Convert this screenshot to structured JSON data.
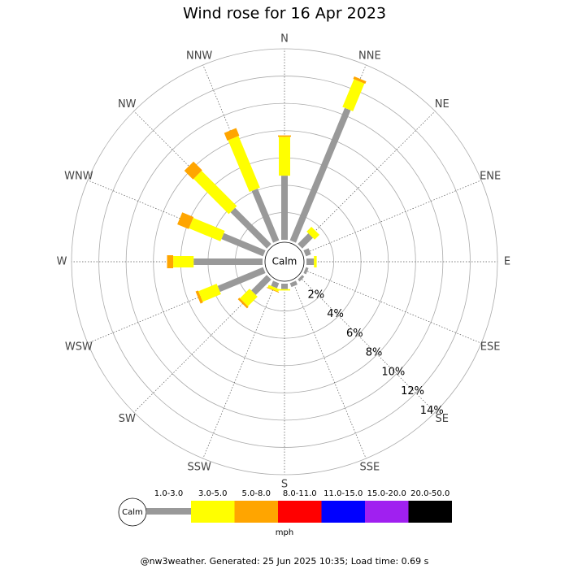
{
  "chart_data": {
    "type": "rose",
    "title": "Wind rose for 16 Apr 2023",
    "categories": [
      "N",
      "NNE",
      "NE",
      "ENE",
      "E",
      "ESE",
      "SE",
      "SSE",
      "S",
      "SSW",
      "SW",
      "WSW",
      "W",
      "WNW",
      "NW",
      "NNW"
    ],
    "center_label": "Calm",
    "series": [
      {
        "name": "1.0-3.0",
        "color": "#999999",
        "values": [
          4.7,
          10.5,
          1.1,
          0.4,
          0.55,
          0.2,
          0.2,
          0.3,
          0.4,
          0.4,
          1.6,
          3.6,
          5.05,
          3.3,
          3.75,
          4.1
        ]
      },
      {
        "name": "3.0-5.0",
        "color": "#ffff00",
        "values": [
          2.85,
          2.2,
          0.5,
          0,
          0.2,
          0,
          0,
          0,
          0.1,
          0.2,
          1.0,
          1.45,
          1.5,
          2.5,
          3.65,
          4.1
        ]
      },
      {
        "name": "5.0-8.0",
        "color": "#ffa500",
        "values": [
          0.1,
          0.2,
          0,
          0,
          0,
          0,
          0,
          0,
          0,
          0.05,
          0.15,
          0.2,
          0.45,
          0.9,
          0.9,
          0.6
        ]
      },
      {
        "name": "8.0-11.0",
        "color": "#ff0000",
        "values": [
          0,
          0,
          0,
          0,
          0,
          0,
          0,
          0,
          0,
          0,
          0,
          0,
          0,
          0,
          0,
          0
        ]
      },
      {
        "name": "11.0-15.0",
        "color": "#0000ff",
        "values": [
          0,
          0,
          0,
          0,
          0,
          0,
          0,
          0,
          0,
          0,
          0,
          0,
          0,
          0,
          0,
          0
        ]
      },
      {
        "name": "15.0-20.0",
        "color": "#a020f0",
        "values": [
          0,
          0,
          0,
          0,
          0,
          0,
          0,
          0,
          0,
          0,
          0,
          0,
          0,
          0,
          0,
          0
        ]
      },
      {
        "name": "20.0-50.0",
        "color": "#000000",
        "values": [
          0,
          0,
          0,
          0,
          0,
          0,
          0,
          0,
          0,
          0,
          0,
          0,
          0,
          0,
          0,
          0
        ]
      }
    ],
    "rlim": [
      0,
      14
    ],
    "rticks": [
      {
        "value": 2,
        "label": "2%"
      },
      {
        "value": 4,
        "label": "4%"
      },
      {
        "value": 6,
        "label": "6%"
      },
      {
        "value": 8,
        "label": "8%"
      },
      {
        "value": 10,
        "label": "10%"
      },
      {
        "value": 12,
        "label": "12%"
      },
      {
        "value": 14,
        "label": "14%"
      }
    ],
    "legend_unit": "mph",
    "footer": "@nw3weather. Generated: 25 Jun 2025 10:35; Load time: 0.69 s"
  }
}
